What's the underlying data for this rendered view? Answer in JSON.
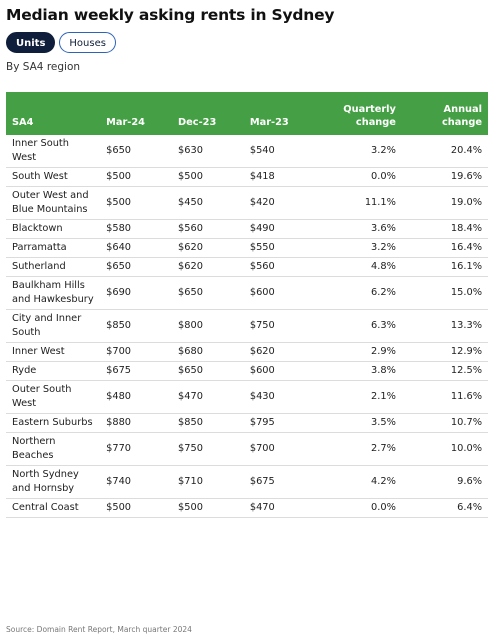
{
  "header": {
    "title": "Median weekly asking rents in Sydney",
    "subtitle": "By SA4 region"
  },
  "toggle": {
    "units_label": "Units",
    "houses_label": "Houses",
    "selected": "Units"
  },
  "colors": {
    "header_green": "#45a045",
    "active_pill": "#0f1e3a",
    "pill_border": "#2d63b8"
  },
  "chart_data": {
    "type": "table",
    "title": "Median weekly asking rents in Sydney",
    "subtitle": "By SA4 region",
    "columns": [
      "SA4",
      "Mar-24",
      "Dec-23",
      "Mar-23",
      "Quarterly change",
      "Annual change"
    ],
    "rows": [
      [
        "Inner South West",
        "$650",
        "$630",
        "$540",
        "3.2%",
        "20.4%"
      ],
      [
        "South West",
        "$500",
        "$500",
        "$418",
        "0.0%",
        "19.6%"
      ],
      [
        "Outer West and Blue Mountains",
        "$500",
        "$450",
        "$420",
        "11.1%",
        "19.0%"
      ],
      [
        "Blacktown",
        "$580",
        "$560",
        "$490",
        "3.6%",
        "18.4%"
      ],
      [
        "Parramatta",
        "$640",
        "$620",
        "$550",
        "3.2%",
        "16.4%"
      ],
      [
        "Sutherland",
        "$650",
        "$620",
        "$560",
        "4.8%",
        "16.1%"
      ],
      [
        "Baulkham Hills and Hawkesbury",
        "$690",
        "$650",
        "$600",
        "6.2%",
        "15.0%"
      ],
      [
        "City and Inner South",
        "$850",
        "$800",
        "$750",
        "6.3%",
        "13.3%"
      ],
      [
        "Inner West",
        "$700",
        "$680",
        "$620",
        "2.9%",
        "12.9%"
      ],
      [
        "Ryde",
        "$675",
        "$650",
        "$600",
        "3.8%",
        "12.5%"
      ],
      [
        "Outer South West",
        "$480",
        "$470",
        "$430",
        "2.1%",
        "11.6%"
      ],
      [
        "Eastern Suburbs",
        "$880",
        "$850",
        "$795",
        "3.5%",
        "10.7%"
      ],
      [
        "Northern Beaches",
        "$770",
        "$750",
        "$700",
        "2.7%",
        "10.0%"
      ],
      [
        "North Sydney and Hornsby",
        "$740",
        "$710",
        "$675",
        "4.2%",
        "9.6%"
      ],
      [
        "Central Coast",
        "$500",
        "$500",
        "$470",
        "0.0%",
        "6.4%"
      ]
    ]
  },
  "footer": {
    "source": "Source: Domain Rent Report, March quarter 2024"
  }
}
